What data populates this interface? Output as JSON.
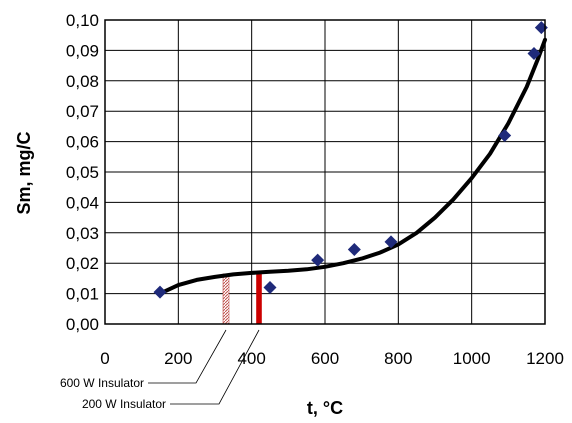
{
  "chart_data": {
    "type": "scatter",
    "xlabel": "t, °C",
    "ylabel": "Sm, mg/C",
    "xlim": [
      0,
      1200
    ],
    "ylim": [
      0,
      0.1
    ],
    "x_ticks": [
      "0",
      "200",
      "400",
      "600",
      "800",
      "1000",
      "1200"
    ],
    "y_ticks": [
      "0,00",
      "0,01",
      "0,02",
      "0,03",
      "0,04",
      "0,05",
      "0,06",
      "0,07",
      "0,08",
      "0,09",
      "0,10"
    ],
    "grid": true,
    "points": [
      {
        "x": 150,
        "y": 0.0105
      },
      {
        "x": 450,
        "y": 0.012
      },
      {
        "x": 580,
        "y": 0.021
      },
      {
        "x": 680,
        "y": 0.0245
      },
      {
        "x": 780,
        "y": 0.027
      },
      {
        "x": 1090,
        "y": 0.062
      },
      {
        "x": 1170,
        "y": 0.089
      },
      {
        "x": 1190,
        "y": 0.0975
      }
    ],
    "fit_curve": [
      {
        "x": 150,
        "y": 0.01
      },
      {
        "x": 200,
        "y": 0.0128
      },
      {
        "x": 250,
        "y": 0.0145
      },
      {
        "x": 300,
        "y": 0.0155
      },
      {
        "x": 350,
        "y": 0.0163
      },
      {
        "x": 400,
        "y": 0.0168
      },
      {
        "x": 450,
        "y": 0.0172
      },
      {
        "x": 500,
        "y": 0.0175
      },
      {
        "x": 550,
        "y": 0.018
      },
      {
        "x": 600,
        "y": 0.0188
      },
      {
        "x": 650,
        "y": 0.02
      },
      {
        "x": 700,
        "y": 0.0215
      },
      {
        "x": 750,
        "y": 0.0235
      },
      {
        "x": 800,
        "y": 0.0262
      },
      {
        "x": 850,
        "y": 0.03
      },
      {
        "x": 900,
        "y": 0.035
      },
      {
        "x": 950,
        "y": 0.041
      },
      {
        "x": 1000,
        "y": 0.048
      },
      {
        "x": 1050,
        "y": 0.056
      },
      {
        "x": 1100,
        "y": 0.066
      },
      {
        "x": 1150,
        "y": 0.078
      },
      {
        "x": 1180,
        "y": 0.087
      },
      {
        "x": 1200,
        "y": 0.0935
      }
    ],
    "insulator_bars": [
      {
        "label": "600 W Insulator",
        "x": 330,
        "y": 0.0165,
        "style": "hatched",
        "color": "#c0504d"
      },
      {
        "label": "200 W Insulator",
        "x": 420,
        "y": 0.017,
        "style": "solid",
        "color": "#cc0000"
      }
    ],
    "marker_color": "#1f2a7a",
    "line_color": "#000000"
  }
}
